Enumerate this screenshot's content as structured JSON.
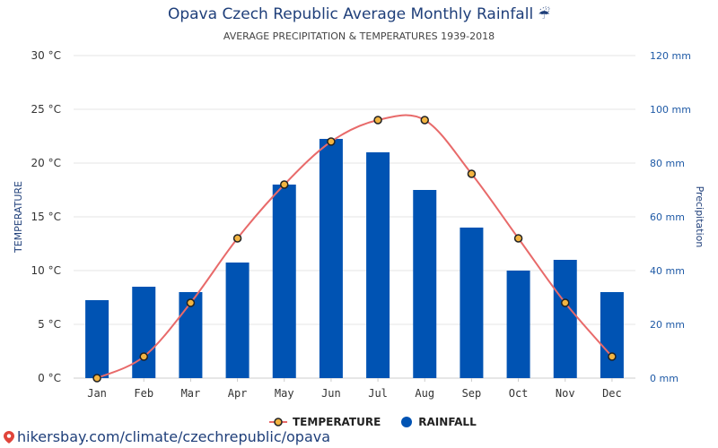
{
  "title": "Opava Czech Republic Average Monthly Rainfall",
  "title_icon": "umbrella-rain-icon",
  "subtitle": "AVERAGE PRECIPITATION & TEMPERATURES 1939-2018",
  "footer_link": "hikersbay.com/climate/czechrepublic/opava",
  "colors": {
    "rainfall": "#0053b3",
    "temperature_line": "#e86a6a",
    "temperature_marker": "#f2b441",
    "title": "#1f3f7a"
  },
  "legend": [
    {
      "label": "TEMPERATURE",
      "icon": "temperature-marker-icon"
    },
    {
      "label": "RAINFALL",
      "icon": "rainfall-dot-icon"
    }
  ],
  "chart_data": {
    "type": "bar",
    "categories": [
      "Jan",
      "Feb",
      "Mar",
      "Apr",
      "May",
      "Jun",
      "Jul",
      "Aug",
      "Sep",
      "Oct",
      "Nov",
      "Dec"
    ],
    "series": [
      {
        "name": "RAINFALL",
        "type": "bar",
        "axis": "right",
        "unit": "mm",
        "values": [
          29,
          34,
          32,
          43,
          72,
          89,
          84,
          70,
          56,
          40,
          44,
          32
        ]
      },
      {
        "name": "TEMPERATURE",
        "type": "line",
        "axis": "left",
        "unit": "°C",
        "values": [
          0,
          2,
          7,
          13,
          18,
          22,
          24,
          24,
          19,
          13,
          7,
          2
        ]
      }
    ],
    "ylabel_left": "TEMPERATURE",
    "ylabel_right": "Precipitation",
    "ylim_left": [
      0,
      30
    ],
    "ylim_right": [
      0,
      120
    ],
    "yticks_left": [
      "0 °C",
      "5 °C",
      "10 °C",
      "15 °C",
      "20 °C",
      "25 °C",
      "30 °C"
    ],
    "yticks_right": [
      "0 mm",
      "20 mm",
      "40 mm",
      "60 mm",
      "80 mm",
      "100 mm",
      "120 mm"
    ],
    "grid": true,
    "legend_position": "bottom-center"
  }
}
